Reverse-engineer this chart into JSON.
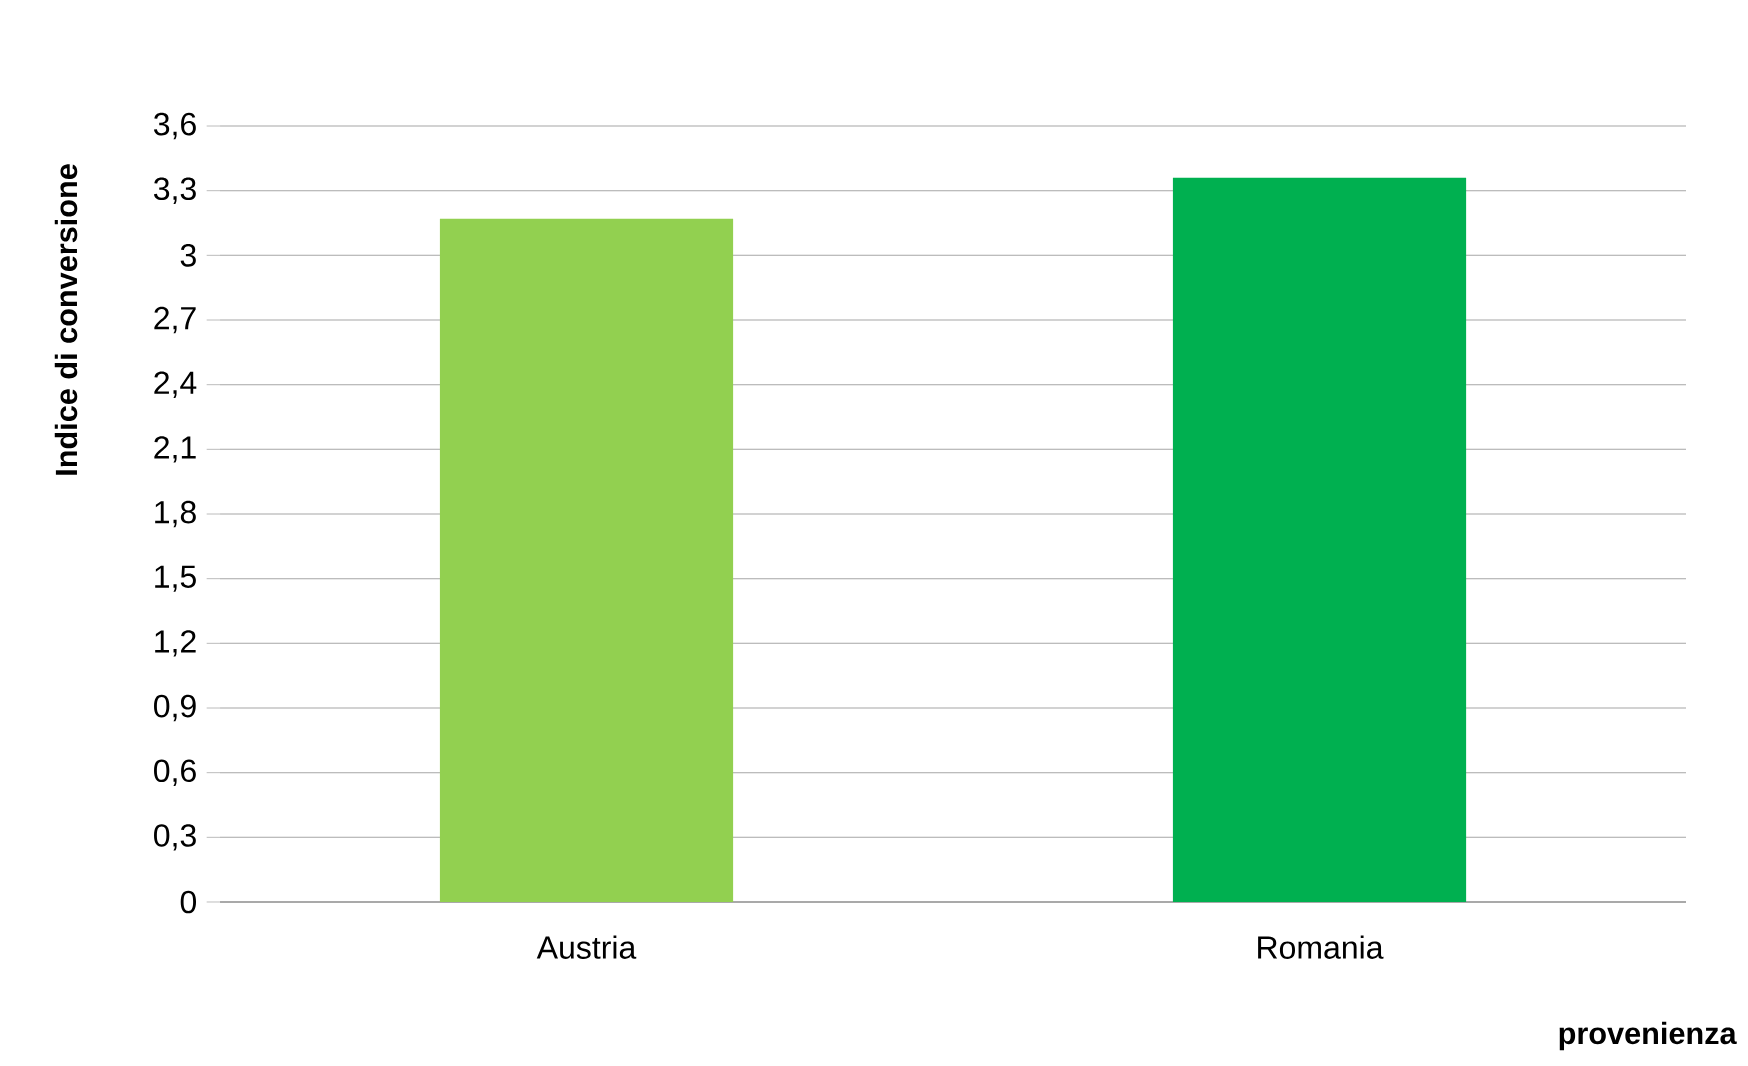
{
  "chart_data": {
    "type": "bar",
    "xlabel": "provenienza",
    "ylabel": "Indice di conversione",
    "categories": [
      "Austria",
      "Romania"
    ],
    "values": [
      3.17,
      3.36
    ],
    "colors": [
      "#92d050",
      "#00b050"
    ],
    "ylim": [
      0,
      3.6
    ],
    "yticks": [
      0,
      {
        "value": 0.3,
        "label": "0,3"
      },
      {
        "value": 0.6,
        "label": "0,6"
      },
      {
        "value": 0.9,
        "label": "0,9"
      },
      {
        "value": 1.2,
        "label": "1,2"
      },
      {
        "value": 1.5,
        "label": "1,5"
      },
      {
        "value": 1.8,
        "label": "1,8"
      },
      {
        "value": 2.1,
        "label": "2,1"
      },
      {
        "value": 2.4,
        "label": "2,4"
      },
      {
        "value": 2.7,
        "label": "2,7"
      },
      3,
      {
        "value": 3.3,
        "label": "3,3"
      },
      {
        "value": 3.6,
        "label": "3,6"
      }
    ],
    "grid": "y"
  }
}
